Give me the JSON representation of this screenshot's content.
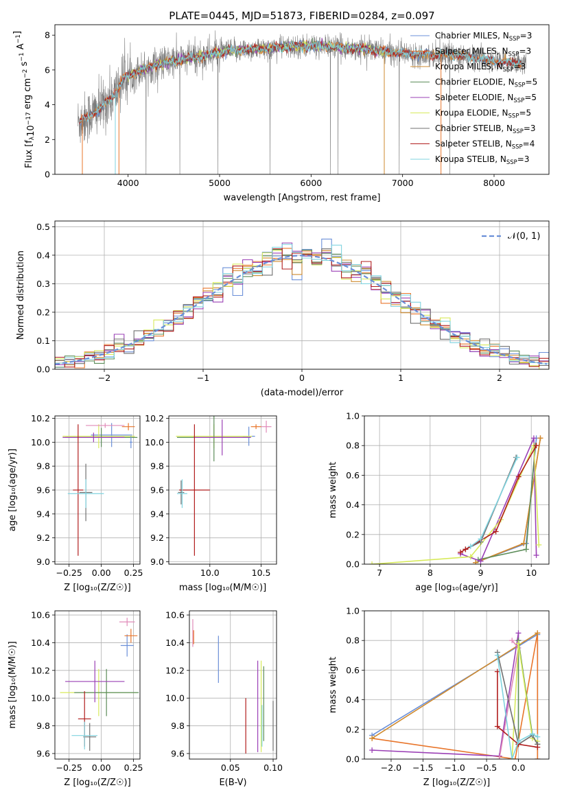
{
  "title": "PLATE=0445, MJD=51873, FIBERID=0284, z=0.097",
  "colors": {
    "chab_miles": "#6a8fd8",
    "salp_miles": "#e8752a",
    "krou_miles": "#cf8a2e",
    "chab_elodie": "#5b8c58",
    "salp_elodie": "#9a3fb5",
    "krou_elodie": "#d7ea5a",
    "chab_stelib": "#6f6f6f",
    "salp_stelib": "#b01c1c",
    "krou_stelib": "#7fd3df",
    "pink": "#e08ab8",
    "normal": "#6a8fd8",
    "grid": "#b0b0b0"
  },
  "chart_data": [
    {
      "id": "spectrum",
      "type": "line",
      "xlabel": "wavelength [Angstrom, rest frame]",
      "ylabel_parts": [
        "Flux [f",
        "λ",
        "10",
        "−17",
        " erg cm",
        "−2",
        " s",
        "−1",
        " A",
        "−1",
        "]"
      ],
      "xlim": [
        3200,
        8600
      ],
      "ylim": [
        0,
        8.6
      ],
      "xticks": [
        4000,
        5000,
        6000,
        7000,
        8000
      ],
      "yticks": [
        0,
        2,
        4,
        6,
        8
      ],
      "legend_position": "right",
      "legend": [
        {
          "key": "chab_miles",
          "prefix": "Chabrier MILES, N",
          "sub": "SSP",
          "suffix": "=3"
        },
        {
          "key": "salp_miles",
          "prefix": "Salpeter MILES, N",
          "sub": "SSP",
          "suffix": "=3"
        },
        {
          "key": "krou_miles",
          "prefix": "Kroupa MILES, N",
          "sub": "SSP",
          "suffix": "=3"
        },
        {
          "key": "chab_elodie",
          "prefix": "Chabrier ELODIE, N",
          "sub": "SSP",
          "suffix": "=5"
        },
        {
          "key": "salp_elodie",
          "prefix": "Salpeter ELODIE, N",
          "sub": "SSP",
          "suffix": "=5"
        },
        {
          "key": "krou_elodie",
          "prefix": "Kroupa ELODIE, N",
          "sub": "SSP",
          "suffix": "=5"
        },
        {
          "key": "chab_stelib",
          "prefix": "Chabrier STELIB, N",
          "sub": "SSP",
          "suffix": "=3"
        },
        {
          "key": "salp_stelib",
          "prefix": "Salpeter STELIB, N",
          "sub": "SSP",
          "suffix": "=4"
        },
        {
          "key": "krou_stelib",
          "prefix": "Kroupa STELIB, N",
          "sub": "SSP",
          "suffix": "=3"
        }
      ],
      "continuum": [
        [
          3470,
          3.0
        ],
        [
          3550,
          3.3
        ],
        [
          3700,
          3.8
        ],
        [
          3850,
          4.6
        ],
        [
          3950,
          5.5
        ],
        [
          4100,
          5.9
        ],
        [
          4300,
          6.3
        ],
        [
          4500,
          6.5
        ],
        [
          4700,
          6.7
        ],
        [
          4900,
          6.9
        ],
        [
          5100,
          7.1
        ],
        [
          5400,
          7.2
        ],
        [
          5700,
          7.3
        ],
        [
          6000,
          7.4
        ],
        [
          6300,
          7.3
        ],
        [
          6600,
          7.2
        ],
        [
          6900,
          7.0
        ],
        [
          7200,
          6.9
        ],
        [
          7500,
          6.9
        ],
        [
          7800,
          6.7
        ],
        [
          8000,
          6.5
        ],
        [
          8300,
          6.4
        ]
      ],
      "data_range": [
        3450,
        8350
      ],
      "models_range": [
        3470,
        8300
      ]
    },
    {
      "id": "residuals",
      "type": "line",
      "xlabel": "(data-model)/error",
      "ylabel": "Normed distribution",
      "xlim": [
        -2.5,
        2.5
      ],
      "ylim": [
        0,
        0.52
      ],
      "xticks": [
        -2,
        -1,
        0,
        1,
        2
      ],
      "xtick_labels": [
        "−2",
        "−1",
        "0",
        "1",
        "2"
      ],
      "yticks": [
        0.0,
        0.1,
        0.2,
        0.3,
        0.4,
        0.5
      ],
      "ytick_labels": [
        "0.0",
        "0.1",
        "0.2",
        "0.3",
        "0.4",
        "0.5"
      ],
      "legend_position": "top-right",
      "normal_label": "𝒩(0, 1)",
      "bin_width": 0.1
    },
    {
      "id": "age_vs_Z",
      "type": "scatter",
      "xlabel": "Z [log₁₀(Z/Z☉)]",
      "ylabel": "age  [log₁₀(age/yr)]",
      "xlim": [
        -0.36,
        0.3
      ],
      "ylim": [
        8.98,
        10.22
      ],
      "xticks": [
        -0.25,
        0.0,
        0.25
      ],
      "xtick_labels": [
        "−0.25",
        "0.00",
        "0.25"
      ],
      "yticks": [
        9.0,
        9.2,
        9.4,
        9.6,
        9.8,
        10.0,
        10.2
      ],
      "ytick_labels": [
        "9.0",
        "9.2",
        "9.4",
        "9.6",
        "9.8",
        "10.0",
        "10.2"
      ],
      "points": [
        {
          "c": "chab_miles",
          "x": 0.08,
          "y": 10.06,
          "xerr": 0.16,
          "yerr": 0.1
        },
        {
          "c": "salp_miles",
          "x": 0.21,
          "y": 10.13,
          "xerr": 0.05,
          "yerr": 0.03
        },
        {
          "c": "krou_elodie",
          "x": -0.02,
          "y": 10.05,
          "xerr": 0.28,
          "yerr": 0.1
        },
        {
          "c": "chab_elodie",
          "x": 0.0,
          "y": 10.04,
          "xerr": 0.28,
          "yerr": 0.08
        },
        {
          "c": "salp_elodie",
          "x": -0.06,
          "y": 10.04,
          "xerr": 0.24,
          "yerr": 0.04
        },
        {
          "c": "pink",
          "x": 0.03,
          "y": 10.14,
          "xerr": 0.15,
          "yerr": 0.02
        },
        {
          "c": "chab_stelib",
          "x": -0.12,
          "y": 9.58,
          "xerr": 0.05,
          "yerr": 0.24
        },
        {
          "c": "salp_stelib",
          "x": -0.18,
          "y": 9.6,
          "xerr": 0.04,
          "yerr": 0.55
        },
        {
          "c": "krou_stelib",
          "x": -0.12,
          "y": 9.57,
          "xerr": 0.14,
          "yerr": 0.12
        },
        {
          "c": "chab_miles",
          "x": 0.23,
          "y": 10.0,
          "xerr": 0.01,
          "yerr": 0.05
        }
      ]
    },
    {
      "id": "age_vs_mass",
      "type": "scatter",
      "xlabel": "mass [log₁₀(M/M☉)]",
      "ylabel": "",
      "xlim": [
        9.6,
        10.65
      ],
      "ylim": [
        8.98,
        10.22
      ],
      "xticks": [
        10.0,
        10.5
      ],
      "xtick_labels": [
        "10.0",
        "10.5"
      ],
      "yticks": [
        9.0,
        9.2,
        9.4,
        9.6,
        9.8,
        10.0,
        10.2
      ],
      "ytick_labels": [
        "9.0",
        "9.2",
        "9.4",
        "9.6",
        "9.8",
        "10.0",
        "10.2"
      ],
      "points": [
        {
          "c": "chab_miles",
          "x": 10.38,
          "y": 10.05,
          "xerr": 0.06,
          "yerr": 0.08
        },
        {
          "c": "salp_miles",
          "x": 10.45,
          "y": 10.13,
          "xerr": 0.05,
          "yerr": 0.02
        },
        {
          "c": "krou_elodie",
          "x": 10.04,
          "y": 10.05,
          "xerr": 0.37,
          "yerr": 0.1
        },
        {
          "c": "chab_elodie",
          "x": 10.04,
          "y": 10.04,
          "xerr": 0.36,
          "yerr": 0.2
        },
        {
          "c": "salp_elodie",
          "x": 10.12,
          "y": 10.04,
          "xerr": 0.28,
          "yerr": 0.15
        },
        {
          "c": "pink",
          "x": 10.55,
          "y": 10.13,
          "xerr": 0.05,
          "yerr": 0.05
        },
        {
          "c": "chab_stelib",
          "x": 9.72,
          "y": 9.58,
          "xerr": 0.03,
          "yerr": 0.1
        },
        {
          "c": "salp_stelib",
          "x": 9.85,
          "y": 9.6,
          "xerr": 0.15,
          "yerr": 0.55
        },
        {
          "c": "krou_stelib",
          "x": 9.73,
          "y": 9.57,
          "xerr": 0.05,
          "yerr": 0.12
        }
      ]
    },
    {
      "id": "weight_vs_age",
      "type": "line",
      "xlabel": "age  [log₁₀(age/yr)]",
      "ylabel": "mass weight",
      "xlim": [
        6.7,
        10.35
      ],
      "ylim": [
        0,
        1
      ],
      "xticks": [
        7,
        8,
        9,
        10
      ],
      "xtick_labels": [
        "7",
        "8",
        "9",
        "10"
      ],
      "yticks": [
        0,
        0.2,
        0.4,
        0.6,
        0.8,
        1.0
      ],
      "ytick_labels": [
        "0.0",
        "0.2",
        "0.4",
        "0.6",
        "0.8",
        "1.0"
      ],
      "series": [
        {
          "c": "chab_miles",
          "points": [
            [
              8.9,
              0.01
            ],
            [
              9.9,
              0.14
            ],
            [
              10.1,
              0.85
            ]
          ]
        },
        {
          "c": "salp_miles",
          "points": [
            [
              8.9,
              0.01
            ],
            [
              9.85,
              0.14
            ],
            [
              10.18,
              0.85
            ]
          ]
        },
        {
          "c": "krou_miles",
          "points": [
            [
              8.9,
              0.01
            ],
            [
              9.85,
              0.14
            ],
            [
              10.18,
              0.85
            ]
          ]
        },
        {
          "c": "chab_elodie",
          "points": [
            [
              8.95,
              0.03
            ],
            [
              9.9,
              0.1
            ],
            [
              10.08,
              0.8
            ]
          ]
        },
        {
          "c": "salp_elodie",
          "points": [
            [
              8.6,
              0.07
            ],
            [
              9.0,
              0.02
            ],
            [
              10.05,
              0.85
            ],
            [
              10.1,
              0.06
            ]
          ]
        },
        {
          "c": "krou_elodie",
          "points": [
            [
              6.85,
              0.0
            ],
            [
              8.8,
              0.05
            ],
            [
              9.4,
              0.3
            ],
            [
              10.05,
              0.8
            ],
            [
              10.15,
              0.13
            ]
          ]
        },
        {
          "c": "chab_stelib",
          "points": [
            [
              8.7,
              0.1
            ],
            [
              9.0,
              0.15
            ],
            [
              9.7,
              0.72
            ]
          ]
        },
        {
          "c": "salp_stelib",
          "points": [
            [
              8.6,
              0.08
            ],
            [
              8.7,
              0.1
            ],
            [
              9.3,
              0.22
            ],
            [
              9.75,
              0.59
            ],
            [
              10.1,
              0.8
            ]
          ]
        },
        {
          "c": "krou_stelib",
          "points": [
            [
              8.8,
              0.12
            ],
            [
              9.0,
              0.17
            ],
            [
              9.72,
              0.72
            ]
          ]
        }
      ]
    },
    {
      "id": "mass_vs_Z",
      "type": "scatter",
      "xlabel": "Z [log₁₀(Z/Z☉)]",
      "ylabel": "mass [log₁₀(M/M☉)]",
      "xlim": [
        -0.36,
        0.3
      ],
      "ylim": [
        9.56,
        10.63
      ],
      "xticks": [
        -0.25,
        0.0,
        0.25
      ],
      "xtick_labels": [
        "−0.25",
        "0.00",
        "0.25"
      ],
      "yticks": [
        9.6,
        9.8,
        10.0,
        10.2,
        10.4,
        10.6
      ],
      "ytick_labels": [
        "9.6",
        "9.8",
        "10.0",
        "10.2",
        "10.4",
        "10.6"
      ],
      "points": [
        {
          "c": "chab_miles",
          "x": 0.2,
          "y": 10.38,
          "xerr": 0.05,
          "yerr": 0.08
        },
        {
          "c": "salp_miles",
          "x": 0.23,
          "y": 10.45,
          "xerr": 0.05,
          "yerr": 0.05
        },
        {
          "c": "krou_elodie",
          "x": -0.02,
          "y": 10.04,
          "xerr": 0.3,
          "yerr": 0.17
        },
        {
          "c": "chab_elodie",
          "x": 0.04,
          "y": 10.04,
          "xerr": 0.25,
          "yerr": 0.17
        },
        {
          "c": "salp_elodie",
          "x": -0.05,
          "y": 10.12,
          "xerr": 0.23,
          "yerr": 0.15
        },
        {
          "c": "pink",
          "x": 0.2,
          "y": 10.55,
          "xerr": 0.06,
          "yerr": 0.03
        },
        {
          "c": "chab_stelib",
          "x": -0.09,
          "y": 9.72,
          "xerr": 0.05,
          "yerr": 0.1
        },
        {
          "c": "salp_stelib",
          "x": -0.13,
          "y": 9.85,
          "xerr": 0.05,
          "yerr": 0.2
        },
        {
          "c": "krou_stelib",
          "x": -0.13,
          "y": 9.73,
          "xerr": 0.1,
          "yerr": 0.1
        }
      ]
    },
    {
      "id": "mass_vs_ebv",
      "type": "scatter",
      "xlabel": "E(B-V)",
      "ylabel": "",
      "xlim": [
        0.002,
        0.104
      ],
      "ylim": [
        9.56,
        10.63
      ],
      "xticks": [
        0.05,
        0.1
      ],
      "xtick_labels": [
        "0.05",
        "0.10"
      ],
      "yticks": [
        9.6,
        9.8,
        10.0,
        10.2,
        10.4,
        10.6
      ],
      "ytick_labels": [
        "9.6",
        "9.8",
        "10.0",
        "10.2",
        "10.4",
        "10.6"
      ],
      "points": [
        {
          "c": "pink",
          "x": 0.006,
          "y": 10.47,
          "xerr": 0.0,
          "yerr": 0.1
        },
        {
          "c": "salp_miles",
          "x": 0.007,
          "y": 10.44,
          "xerr": 0.0,
          "yerr": 0.05
        },
        {
          "c": "chab_miles",
          "x": 0.036,
          "y": 10.28,
          "xerr": 0.0,
          "yerr": 0.17
        },
        {
          "c": "salp_stelib",
          "x": 0.068,
          "y": 9.8,
          "xerr": 0.0,
          "yerr": 0.2
        },
        {
          "c": "salp_elodie",
          "x": 0.082,
          "y": 9.94,
          "xerr": 0.0,
          "yerr": 0.33
        },
        {
          "c": "krou_elodie",
          "x": 0.086,
          "y": 9.94,
          "xerr": 0.0,
          "yerr": 0.33
        },
        {
          "c": "chab_elodie",
          "x": 0.089,
          "y": 9.96,
          "xerr": 0.0,
          "yerr": 0.27
        },
        {
          "c": "krou_stelib",
          "x": 0.087,
          "y": 9.8,
          "xerr": 0.0,
          "yerr": 0.15
        },
        {
          "c": "chab_stelib",
          "x": 0.1,
          "y": 9.8,
          "xerr": 0.0,
          "yerr": 0.18
        }
      ]
    },
    {
      "id": "weight_vs_Z",
      "type": "line",
      "xlabel": "Z [log₁₀(Z/Z☉)]",
      "ylabel": "mass weight",
      "xlim": [
        -2.42,
        0.48
      ],
      "ylim": [
        0,
        1
      ],
      "xticks": [
        -2.0,
        -1.5,
        -1.0,
        -0.5,
        0.0
      ],
      "xtick_labels": [
        "−2.0",
        "−1.5",
        "−1.0",
        "−0.5",
        "0.0"
      ],
      "yticks": [
        0,
        0.2,
        0.4,
        0.6,
        0.8,
        1.0
      ],
      "ytick_labels": [
        "0.0",
        "0.2",
        "0.4",
        "0.6",
        "0.8",
        "1.0"
      ],
      "series": [
        {
          "c": "chab_miles",
          "points": [
            [
              -2.3,
              0.16
            ],
            [
              0.3,
              0.84
            ],
            [
              0.3,
              0.0
            ]
          ]
        },
        {
          "c": "salp_miles",
          "points": [
            [
              -2.3,
              0.14
            ],
            [
              -0.05,
              0.0
            ],
            [
              0.3,
              0.85
            ],
            [
              0.3,
              0.0
            ]
          ]
        },
        {
          "c": "krou_miles",
          "points": [
            [
              -2.3,
              0.14
            ],
            [
              0.3,
              0.85
            ]
          ]
        },
        {
          "c": "salp_elodie",
          "points": [
            [
              -2.3,
              0.06
            ],
            [
              -0.3,
              0.02
            ],
            [
              0.0,
              0.85
            ],
            [
              0.0,
              0.8
            ]
          ]
        },
        {
          "c": "pink",
          "points": [
            [
              -0.3,
              0.0
            ],
            [
              0.0,
              0.75
            ],
            [
              -0.1,
              0.8
            ]
          ]
        },
        {
          "c": "chab_elodie",
          "points": [
            [
              0.0,
              0.1
            ],
            [
              0.0,
              0.8
            ],
            [
              0.22,
              0.16
            ],
            [
              0.3,
              0.1
            ]
          ]
        },
        {
          "c": "krou_elodie",
          "points": [
            [
              -0.1,
              0.0
            ],
            [
              0.0,
              0.78
            ],
            [
              0.22,
              0.14
            ],
            [
              0.3,
              0.12
            ]
          ]
        },
        {
          "c": "chab_stelib",
          "points": [
            [
              -0.33,
              0.72
            ],
            [
              0.0,
              0.1
            ],
            [
              0.22,
              0.16
            ],
            [
              0.3,
              0.1
            ]
          ]
        },
        {
          "c": "salp_stelib",
          "points": [
            [
              -0.33,
              0.59
            ],
            [
              -0.33,
              0.22
            ],
            [
              0.0,
              0.1
            ],
            [
              0.3,
              0.08
            ]
          ]
        },
        {
          "c": "krou_stelib",
          "points": [
            [
              -0.33,
              0.7
            ],
            [
              -0.1,
              0.0
            ],
            [
              0.0,
              0.12
            ],
            [
              0.22,
              0.17
            ],
            [
              0.3,
              0.15
            ]
          ]
        }
      ]
    }
  ]
}
